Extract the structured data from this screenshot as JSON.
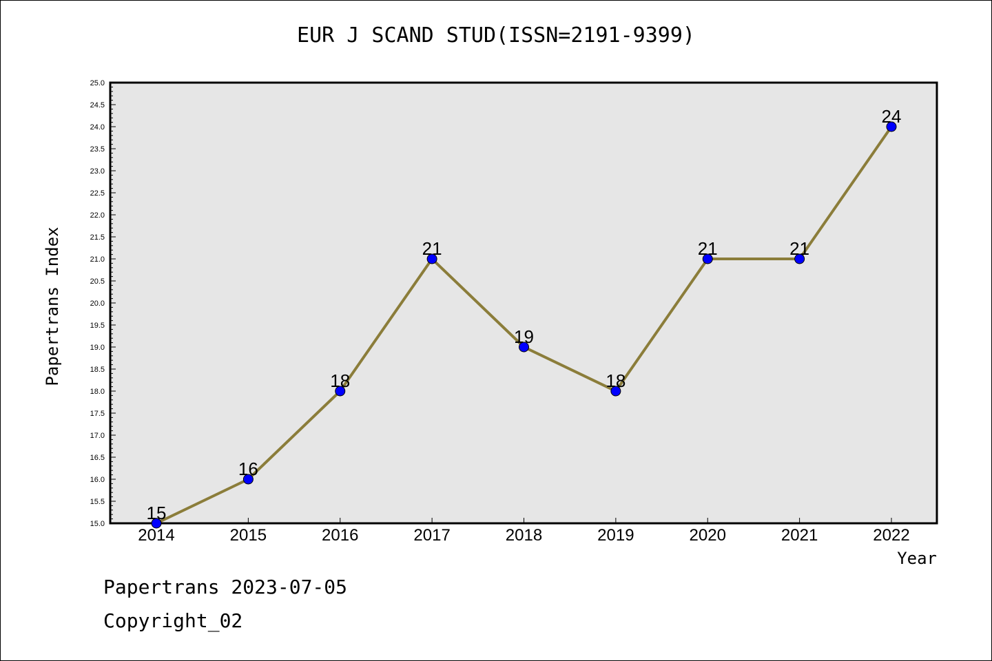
{
  "chart_data": {
    "type": "line",
    "title": "EUR J SCAND STUD(ISSN=2191-9399)",
    "xlabel": "Year",
    "ylabel": "Papertrans Index",
    "x": [
      "2014",
      "2015",
      "2016",
      "2017",
      "2018",
      "2019",
      "2020",
      "2021",
      "2022"
    ],
    "series": [
      {
        "values": [
          15,
          16,
          18,
          21,
          19,
          18,
          21,
          21,
          24
        ]
      }
    ],
    "data_labels": [
      "15",
      "16",
      "18",
      "21",
      "19",
      "18",
      "21",
      "21",
      "24"
    ],
    "ylim": [
      15.0,
      25.0
    ],
    "y_ticks": [
      "15.0",
      "15.5",
      "16.0",
      "16.5",
      "17.0",
      "17.5",
      "18.0",
      "18.5",
      "19.0",
      "19.5",
      "20.0",
      "20.5",
      "21.0",
      "21.5",
      "22.0",
      "22.5",
      "23.0",
      "23.5",
      "24.0",
      "24.5",
      "25.0"
    ],
    "grid": false,
    "colors": {
      "line": "#8B7D3A",
      "marker": "#0000FF",
      "plot_background": "#E6E6E6"
    }
  },
  "footer": {
    "date_text": "Papertrans 2023-07-05",
    "copyright_text": "Copyright_02"
  }
}
